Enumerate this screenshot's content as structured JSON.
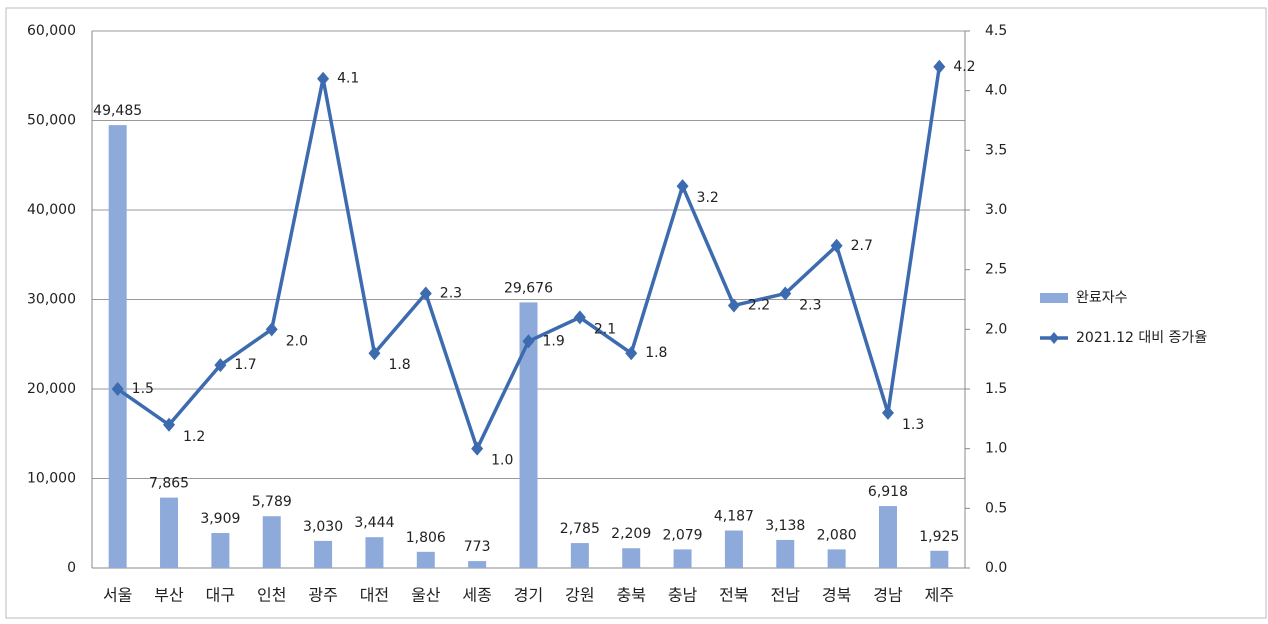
{
  "chart_data": {
    "type": "bar",
    "categories": [
      "서울",
      "부산",
      "대구",
      "인천",
      "광주",
      "대전",
      "울산",
      "세종",
      "경기",
      "강원",
      "충북",
      "충남",
      "전북",
      "전남",
      "경북",
      "경남",
      "제주"
    ],
    "series": [
      {
        "name": "완료자수",
        "type": "bar",
        "color": "#8eaadb",
        "values": [
          49485,
          7865,
          3909,
          5789,
          3030,
          3444,
          1806,
          773,
          29676,
          2785,
          2209,
          2079,
          4187,
          3138,
          2080,
          6918,
          1925
        ],
        "value_labels": [
          "49,485",
          "7,865",
          "3,909",
          "5,789",
          "3,030",
          "3,444",
          "1,806",
          "773",
          "29,676",
          "2,785",
          "2,209",
          "2,079",
          "4,187",
          "3,138",
          "2,080",
          "6,918",
          "1,925"
        ]
      },
      {
        "name": "2021.12 대비 증가율",
        "type": "line",
        "axis": "y2",
        "color": "#3d6bb0",
        "values": [
          1.5,
          1.2,
          1.7,
          2.0,
          4.1,
          1.8,
          2.3,
          1.0,
          1.9,
          2.1,
          1.8,
          3.2,
          2.2,
          2.3,
          2.7,
          1.3,
          4.2
        ],
        "value_labels": [
          "1.5",
          "1.2",
          "1.7",
          "2.0",
          "4.1",
          "1.8",
          "2.3",
          "1.0",
          "1.9",
          "2.1",
          "1.8",
          "3.2",
          "2.2",
          "2.3",
          "2.7",
          "1.3",
          "4.2"
        ]
      }
    ],
    "ylim": [
      0,
      60000
    ],
    "yticks": [
      0,
      {
        "value": 10000,
        "label": "10,000"
      },
      {
        "value": 20000,
        "label": "20,000"
      },
      {
        "value": 30000,
        "label": "30,000"
      },
      {
        "value": 40000,
        "label": "40,000"
      },
      {
        "value": 50000,
        "label": "50,000"
      },
      {
        "value": 60000,
        "label": "60,000"
      }
    ],
    "y2lim": [
      0,
      4.5
    ],
    "y2ticks": [
      {
        "value": 0,
        "label": "0.0"
      },
      0.5,
      {
        "value": 1,
        "label": "1.0"
      },
      1.5,
      {
        "value": 2,
        "label": "2.0"
      },
      2.5,
      {
        "value": 3,
        "label": "3.0"
      },
      3.5,
      {
        "value": 4,
        "label": "4.0"
      },
      4.5
    ],
    "grid": true,
    "legend": "right"
  }
}
